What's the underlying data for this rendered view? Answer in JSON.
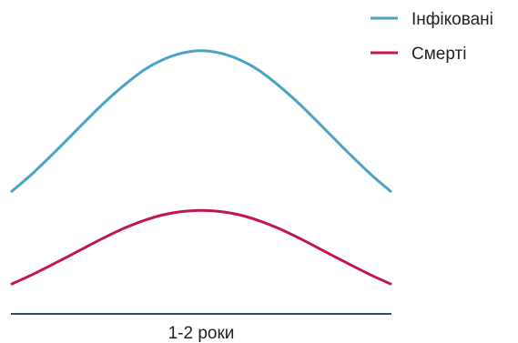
{
  "chart_data": {
    "type": "line",
    "title": "",
    "xlabel": "1-2 роки",
    "ylabel": "",
    "grid": false,
    "legend_position": "top-right",
    "x": [
      0,
      0.05,
      0.1,
      0.15,
      0.2,
      0.25,
      0.3,
      0.35,
      0.4,
      0.45,
      0.5,
      0.55,
      0.6,
      0.65,
      0.7,
      0.75,
      0.8,
      0.85,
      0.9,
      0.95,
      1
    ],
    "xlim": [
      0,
      1
    ],
    "ylim": [
      0,
      100
    ],
    "series": [
      {
        "name": "Інфіковані",
        "color": "#4aa3c3",
        "values": [
          41.2,
          46.7,
          52.8,
          59.2,
          65.7,
          72.0,
          77.6,
          82.5,
          86.0,
          88.2,
          89.0,
          88.2,
          86.0,
          82.5,
          77.6,
          72.0,
          65.7,
          59.2,
          52.8,
          46.7,
          41.2
        ]
      },
      {
        "name": "Смерті",
        "color": "#c0184a",
        "values": [
          10.0,
          12.9,
          16.1,
          19.4,
          22.8,
          26.1,
          29.1,
          31.6,
          33.5,
          34.6,
          35.0,
          34.6,
          33.5,
          31.6,
          29.1,
          26.1,
          22.8,
          19.4,
          16.1,
          12.9,
          10.0
        ]
      }
    ],
    "axis_color": "#2f4f5f"
  }
}
